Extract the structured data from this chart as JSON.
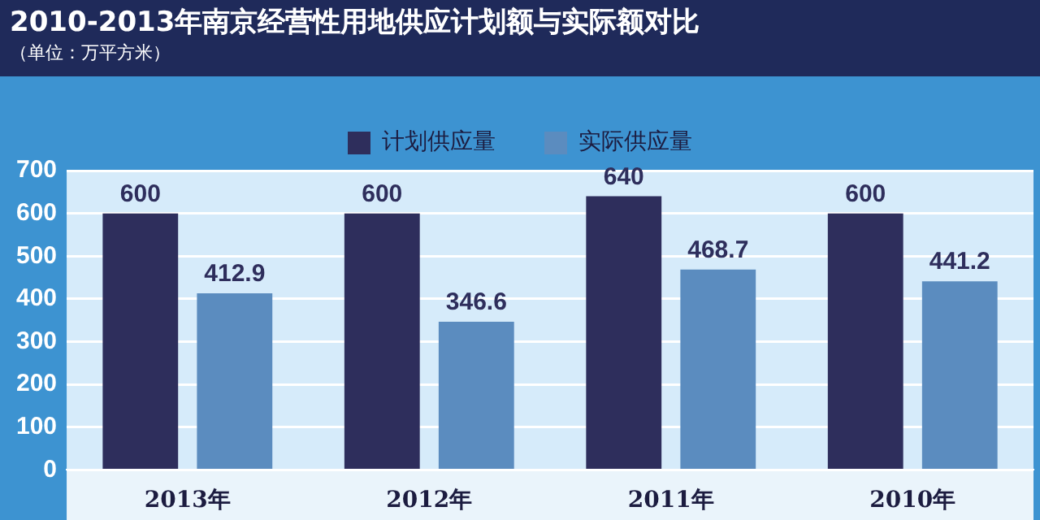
{
  "chart_data": {
    "type": "bar",
    "title": "2010-2013年南京经营性用地供应计划额与实际额对比",
    "subtitle": "（单位：万平方米）",
    "categories": [
      "2013年",
      "2012年",
      "2011年",
      "2010年"
    ],
    "series": [
      {
        "name": "计划供应量",
        "color": "#2e2e5c",
        "values": [
          600,
          600,
          640,
          600
        ]
      },
      {
        "name": "实际供应量",
        "color": "#5b8cbf",
        "values": [
          412.9,
          346.6,
          468.7,
          441.2
        ]
      }
    ],
    "ylim": [
      0,
      700
    ],
    "yticks": [
      0,
      100,
      200,
      300,
      400,
      500,
      600,
      700
    ],
    "grid": "y",
    "legend": "top",
    "data_labels": true
  }
}
